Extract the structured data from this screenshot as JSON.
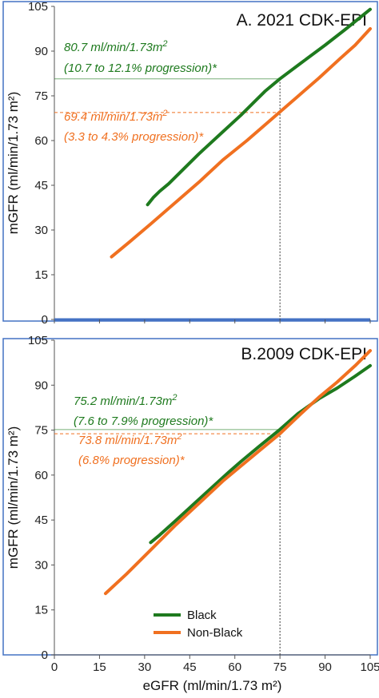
{
  "colors": {
    "black_series": "#1e7a1e",
    "nonblack_series": "#f07020",
    "frame": "#4472c4",
    "axis": "#555555"
  },
  "chart_data": [
    {
      "type": "line",
      "title": "A. 2021 CDK-EPI",
      "xlabel": "",
      "ylabel": "mGFR (ml/min/1.73 m²)",
      "xlim": [
        0,
        105
      ],
      "ylim": [
        0,
        105
      ],
      "x_ticks": [
        "0",
        "15",
        "30",
        "45",
        "60",
        "75",
        "90",
        "105"
      ],
      "y_ticks": [
        "0",
        "15",
        "30",
        "45",
        "60",
        "75",
        "90",
        "105"
      ],
      "grid": false,
      "series": [
        {
          "name": "Black",
          "color": "#1e7a1e",
          "x": [
            31,
            33,
            35,
            38,
            42,
            48,
            55,
            62,
            70,
            75,
            82,
            90,
            97,
            105
          ],
          "y": [
            38.5,
            41,
            43,
            45.5,
            49.5,
            55.5,
            62,
            68.5,
            76.5,
            80.7,
            86,
            92,
            97.5,
            104
          ]
        },
        {
          "name": "Non-Black",
          "color": "#f07020",
          "x": [
            19,
            25,
            32,
            40,
            48,
            56,
            64,
            72,
            80,
            88,
            95,
            100,
            105
          ],
          "y": [
            21,
            26,
            32,
            39,
            46,
            53.5,
            60,
            67,
            74,
            81,
            87.5,
            92,
            97.5
          ]
        }
      ],
      "annotations": [
        {
          "line1": "80.7 ml/min/1.73m",
          "sup": "2",
          "line2": "(10.7 to 12.1% progression)*",
          "value": 80.7,
          "series": "Black",
          "line_style": "solid"
        },
        {
          "line1": "69.4  ml/min/1.73m",
          "sup": "2",
          "line2": "(3.3 to 4.3% progression)*",
          "value": 69.4,
          "series": "Non-Black",
          "line_style": "dashed"
        }
      ],
      "x_reference": 75
    },
    {
      "type": "line",
      "title": "B.2009 CDK-EPI",
      "xlabel": "eGFR (ml/min/1.73 m²)",
      "ylabel": "mGFR (ml/min/1.73 m²)",
      "xlim": [
        0,
        105
      ],
      "ylim": [
        0,
        105
      ],
      "x_ticks": [
        "0",
        "15",
        "30",
        "45",
        "60",
        "75",
        "90",
        "105"
      ],
      "y_ticks": [
        "0",
        "15",
        "30",
        "45",
        "60",
        "75",
        "90",
        "105"
      ],
      "grid": false,
      "series": [
        {
          "name": "Black",
          "color": "#1e7a1e",
          "x": [
            32,
            35,
            40,
            46,
            52,
            58,
            62,
            68,
            75,
            81,
            88,
            94,
            100,
            105
          ],
          "y": [
            37.5,
            40,
            44.5,
            50,
            55.5,
            61,
            64.5,
            69.5,
            75.2,
            80.5,
            85.5,
            89,
            93,
            96.5
          ]
        },
        {
          "name": "Non-Black",
          "color": "#f07020",
          "x": [
            17,
            24,
            32,
            40,
            48,
            56,
            62,
            68,
            75,
            82,
            88,
            94,
            100,
            105
          ],
          "y": [
            20.5,
            27,
            35,
            43,
            50.5,
            58,
            63,
            68,
            73.8,
            80.5,
            86,
            91,
            96.5,
            101.5
          ]
        }
      ],
      "annotations": [
        {
          "line1": "75.2 ml/min/1.73m",
          "sup": "2",
          "line2": "(7.6 to 7.9% progression)*",
          "value": 75.2,
          "series": "Black",
          "line_style": "solid"
        },
        {
          "line1": "73.8  ml/min/1.73m",
          "sup": "2",
          "line2": "(6.8% progression)*",
          "value": 73.8,
          "series": "Non-Black",
          "line_style": "dashed"
        }
      ],
      "x_reference": 75,
      "legend": {
        "placement": "bottom-center",
        "entries": [
          "Black",
          "Non-Black"
        ]
      }
    }
  ]
}
